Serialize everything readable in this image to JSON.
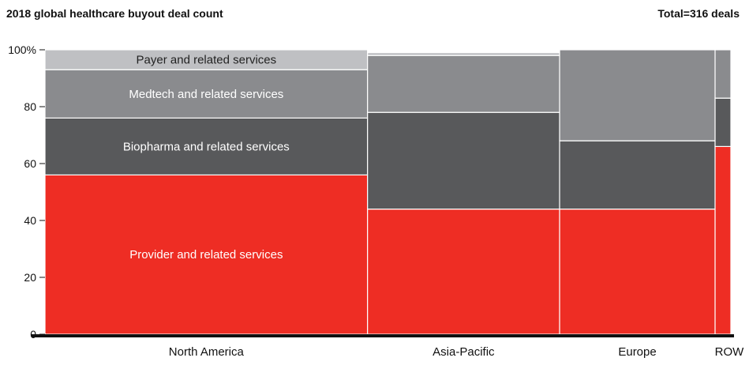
{
  "title": "2018 global healthcare buyout deal count",
  "total_label": "Total=316 deals",
  "chart_data": {
    "type": "bar",
    "subtype": "marimekko",
    "title": "2018 global healthcare buyout deal count",
    "total": 316,
    "y_tick_labels": [
      "0",
      "20",
      "40",
      "60",
      "80",
      "100%"
    ],
    "ylim": [
      0,
      100
    ],
    "grid": false,
    "categories": [
      "North America",
      "Asia-Pacific",
      "Europe",
      "ROW"
    ],
    "column_widths": [
      139.2,
      82.9,
      67.1,
      6.8
    ],
    "series": [
      {
        "name": "Provider and related services",
        "color": "#ee2d24",
        "values": [
          56,
          44,
          44,
          66
        ]
      },
      {
        "name": "Biopharma and related services",
        "color": "#58595b",
        "values": [
          20,
          34,
          24,
          17
        ]
      },
      {
        "name": "Medtech and related services",
        "color": "#8a8b8e",
        "values": [
          17,
          20,
          32,
          17
        ]
      },
      {
        "name": "Payer and related services",
        "color": "#bfc0c3",
        "values": [
          7,
          1,
          0,
          0
        ]
      }
    ],
    "segment_labels": [
      {
        "text": "Provider and related services",
        "series": 0,
        "column": 0
      },
      {
        "text": "Biopharma and related services",
        "series": 1,
        "column": 0
      },
      {
        "text": "Medtech and related services",
        "series": 2,
        "column": 0
      },
      {
        "text": "Payer and related services",
        "series": 3,
        "column": 0
      }
    ]
  }
}
